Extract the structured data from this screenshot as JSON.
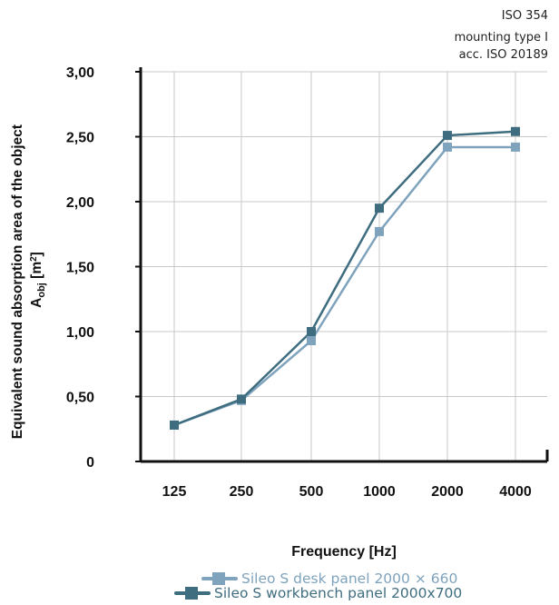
{
  "annotation": {
    "line1": "ISO 354",
    "line2": "mounting type I",
    "line3": "acc. ISO 20189"
  },
  "colors": {
    "desk": "#7fa3bd",
    "workbench": "#3f6d80",
    "grid": "#c8c8c8",
    "axis": "#111111"
  },
  "chart_data": {
    "type": "line",
    "title": "",
    "xlabel": "Frequency [Hz]",
    "ylabel_line1": "Equivalent sound absorption area of the object",
    "ylabel_line2": "A",
    "ylabel_sub": "obj",
    "ylabel_unit_open": " [m",
    "ylabel_sup": "2",
    "ylabel_unit_close": "]",
    "categories": [
      "125",
      "250",
      "500",
      "1000",
      "2000",
      "4000"
    ],
    "y_ticks": [
      "0",
      "0,50",
      "1,00",
      "1,50",
      "2,00",
      "2,50",
      "3,00"
    ],
    "ylim": [
      0,
      3
    ],
    "grid": true,
    "legend_position": "bottom",
    "series": [
      {
        "name": "Sileo S desk panel 2000 × 660",
        "values": [
          0.28,
          0.47,
          0.93,
          1.77,
          2.42,
          2.42
        ]
      },
      {
        "name": "Sileo S workbench panel 2000x700",
        "values": [
          0.28,
          0.48,
          1.0,
          1.95,
          2.51,
          2.54
        ]
      }
    ]
  }
}
